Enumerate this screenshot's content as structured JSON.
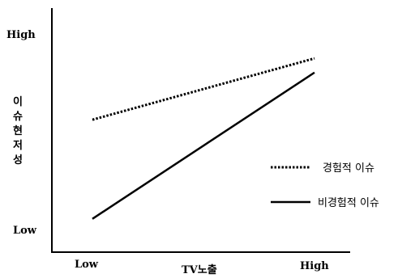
{
  "chart_data": {
    "type": "line",
    "title": "",
    "xlabel": "TV노출",
    "ylabel": "이슈현저성",
    "x_ticks": [
      "Low",
      "High"
    ],
    "y_ticks": [
      "Low",
      "High"
    ],
    "grid": false,
    "legend_placement": "right",
    "series": [
      {
        "name": "경험적 이슈",
        "style": "dotted",
        "color": "#000000",
        "values": [
          0.52,
          0.78
        ]
      },
      {
        "name": "비경험적 이슈",
        "style": "solid",
        "color": "#000000",
        "values": [
          0.1,
          0.72
        ]
      }
    ]
  }
}
